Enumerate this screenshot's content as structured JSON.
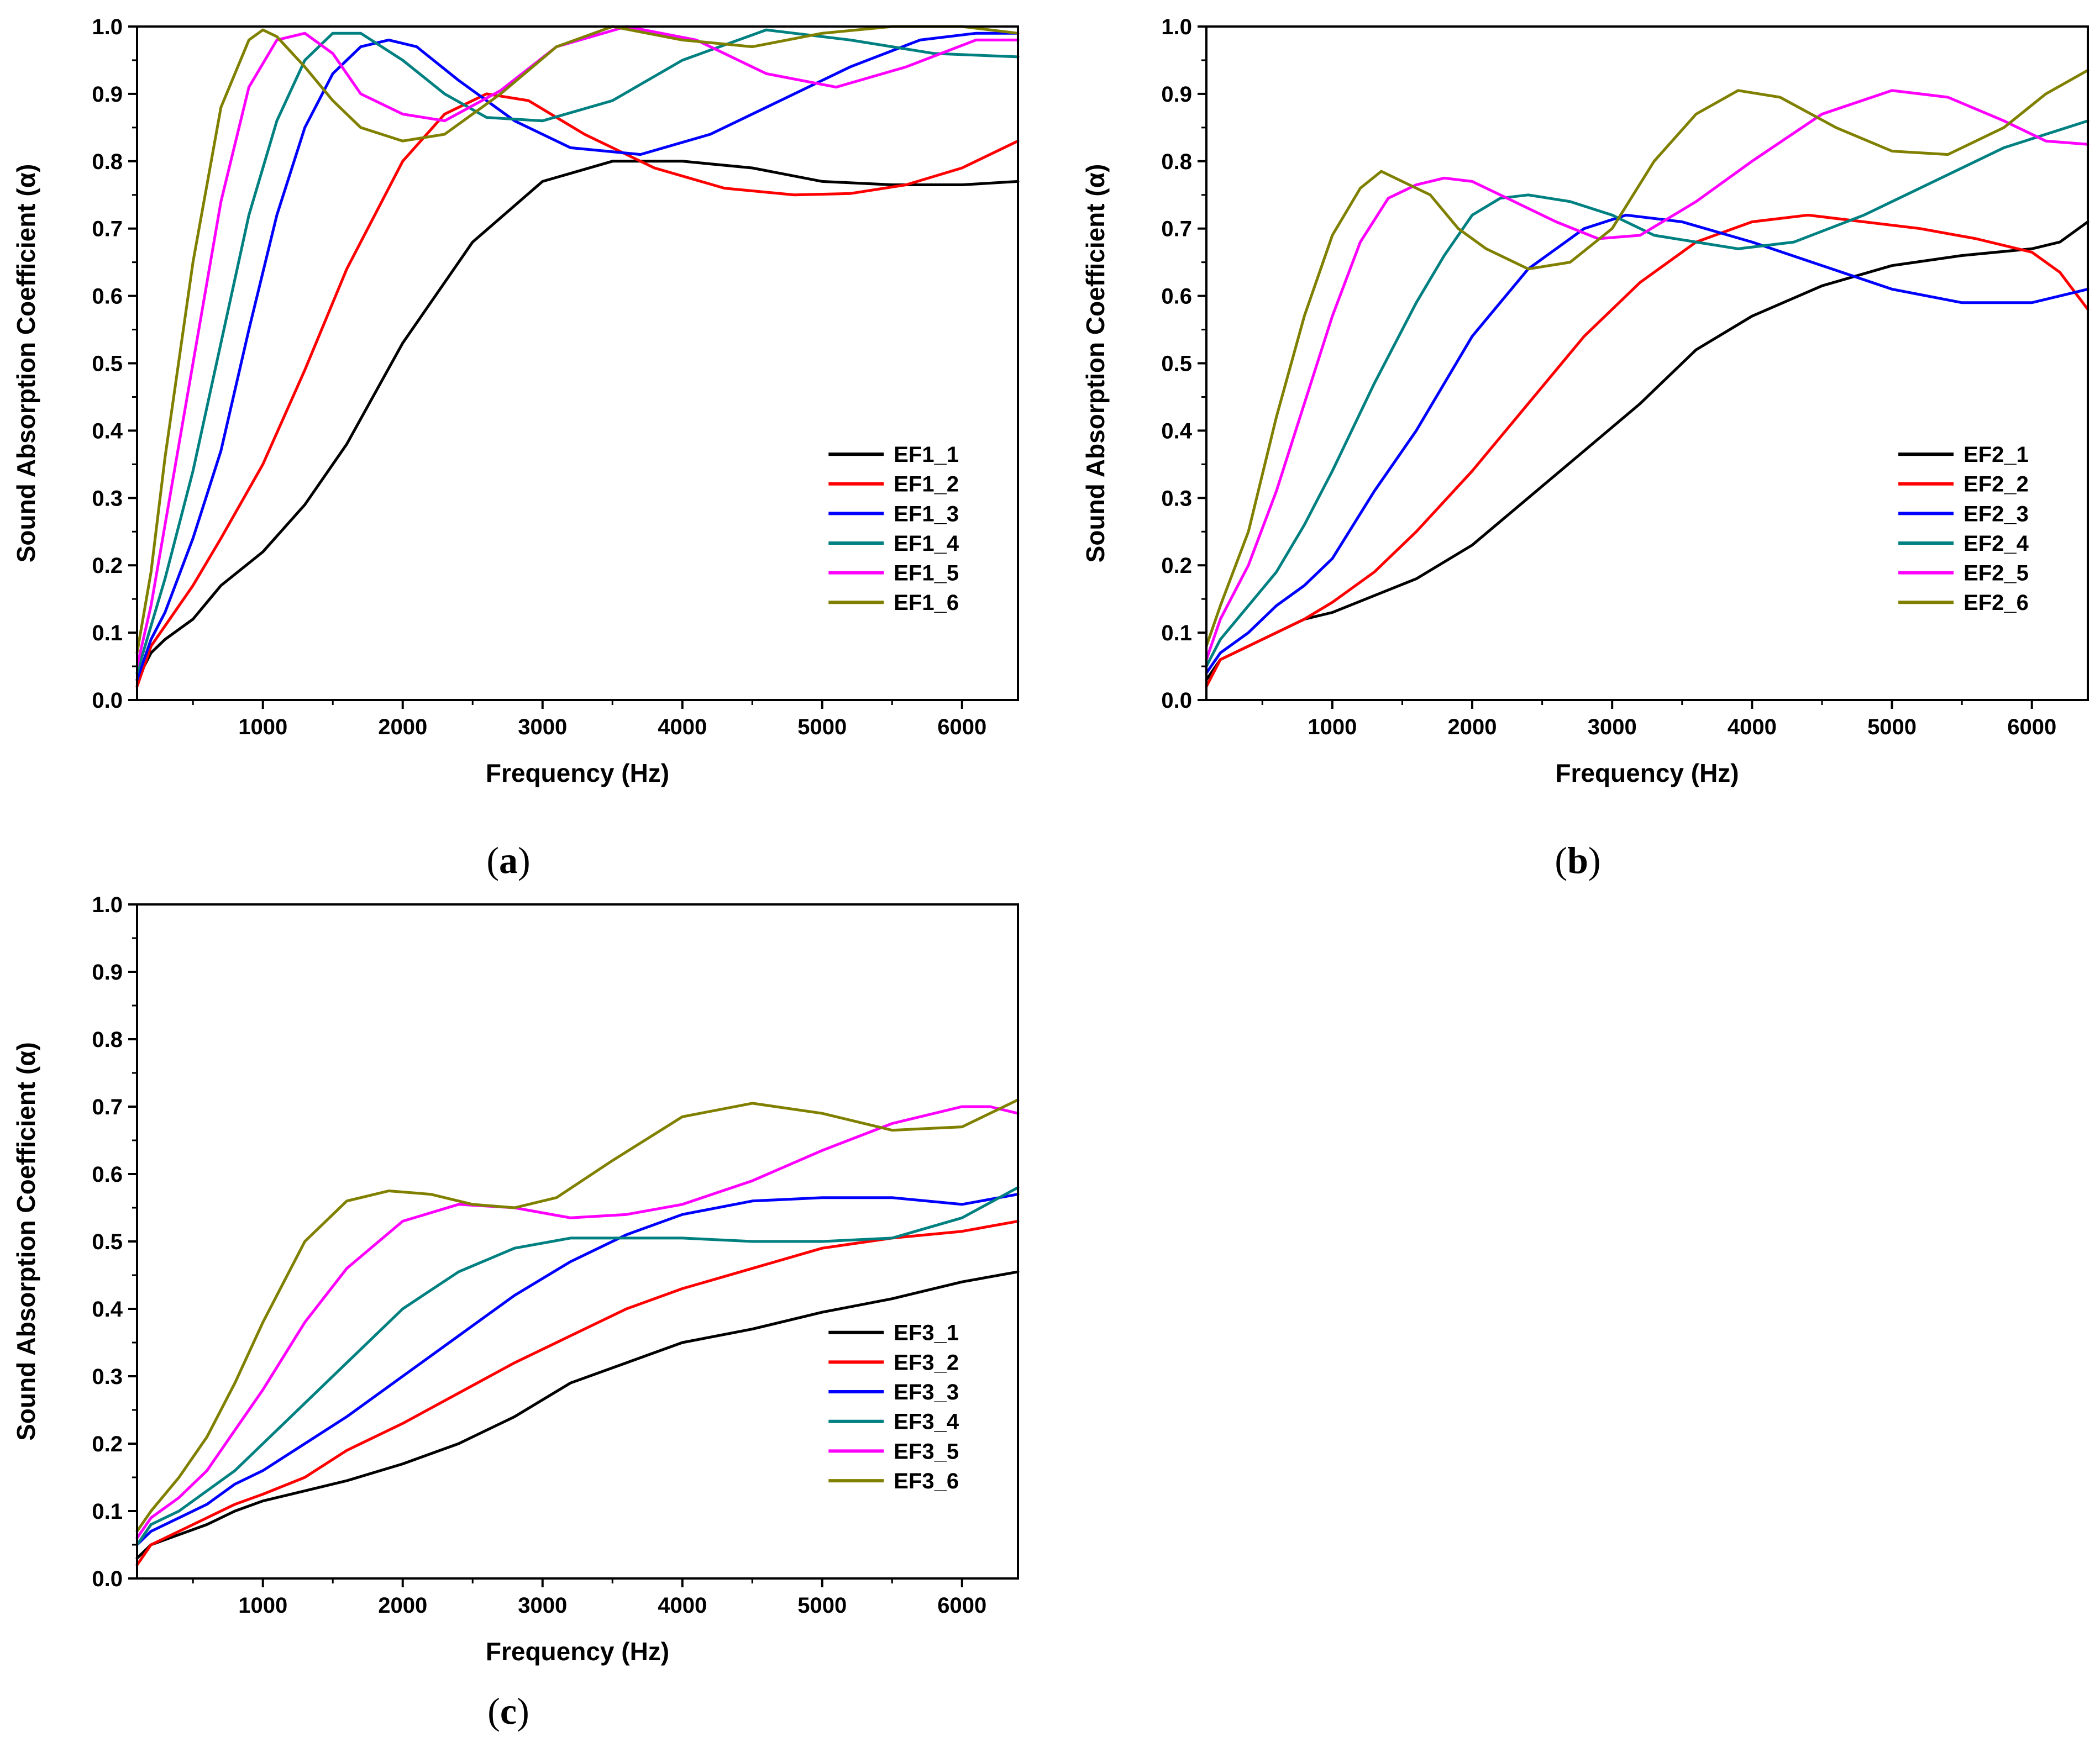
{
  "colors": [
    "#000000",
    "#ff0000",
    "#0000ff",
    "#008080",
    "#ff00ff",
    "#808000"
  ],
  "chart_data": [
    {
      "type": "line",
      "panel": "a",
      "xlabel": "Frequency (Hz)",
      "ylabel": "Sound Absorption Coefficient (α)",
      "xlim": [
        100,
        6400
      ],
      "ylim": [
        0.0,
        1.0
      ],
      "xticks": [
        1000,
        2000,
        3000,
        4000,
        5000,
        6000
      ],
      "yticks": [
        "0.0",
        "0.1",
        "0.2",
        "0.3",
        "0.4",
        "0.5",
        "0.6",
        "0.7",
        "0.8",
        "0.9",
        "1.0"
      ],
      "legend": "center-right",
      "grid": false,
      "series": [
        {
          "name": "EF1_1",
          "x": [
            100,
            200,
            300,
            500,
            700,
            1000,
            1300,
            1600,
            2000,
            2500,
            3000,
            3500,
            4000,
            4500,
            5000,
            5500,
            6000,
            6400
          ],
          "y": [
            0.03,
            0.07,
            0.09,
            0.12,
            0.17,
            0.22,
            0.29,
            0.38,
            0.53,
            0.68,
            0.77,
            0.8,
            0.8,
            0.79,
            0.77,
            0.765,
            0.765,
            0.77
          ]
        },
        {
          "name": "EF1_2",
          "x": [
            100,
            200,
            300,
            500,
            700,
            1000,
            1300,
            1600,
            2000,
            2300,
            2600,
            2900,
            3300,
            3800,
            4300,
            4800,
            5200,
            5600,
            6000,
            6400
          ],
          "y": [
            0.02,
            0.08,
            0.11,
            0.17,
            0.24,
            0.35,
            0.49,
            0.64,
            0.8,
            0.87,
            0.9,
            0.89,
            0.84,
            0.79,
            0.76,
            0.75,
            0.752,
            0.765,
            0.79,
            0.83
          ]
        },
        {
          "name": "EF1_3",
          "x": [
            100,
            200,
            300,
            500,
            700,
            900,
            1100,
            1300,
            1500,
            1700,
            1900,
            2100,
            2400,
            2800,
            3200,
            3700,
            4200,
            4700,
            5200,
            5700,
            6100,
            6400
          ],
          "y": [
            0.03,
            0.09,
            0.13,
            0.24,
            0.37,
            0.55,
            0.72,
            0.85,
            0.93,
            0.97,
            0.98,
            0.97,
            0.92,
            0.86,
            0.82,
            0.81,
            0.84,
            0.89,
            0.94,
            0.98,
            0.99,
            0.99
          ]
        },
        {
          "name": "EF1_4",
          "x": [
            100,
            200,
            300,
            500,
            700,
            900,
            1100,
            1300,
            1500,
            1700,
            2000,
            2300,
            2600,
            3000,
            3500,
            4000,
            4600,
            5200,
            5800,
            6400
          ],
          "y": [
            0.04,
            0.11,
            0.18,
            0.34,
            0.53,
            0.72,
            0.86,
            0.95,
            0.99,
            0.99,
            0.95,
            0.9,
            0.865,
            0.86,
            0.89,
            0.95,
            0.995,
            0.98,
            0.96,
            0.955
          ]
        },
        {
          "name": "EF1_5",
          "x": [
            100,
            200,
            300,
            500,
            700,
            900,
            1100,
            1300,
            1500,
            1700,
            2000,
            2300,
            2700,
            3100,
            3600,
            4100,
            4600,
            5100,
            5600,
            6100,
            6400
          ],
          "y": [
            0.05,
            0.14,
            0.26,
            0.5,
            0.74,
            0.91,
            0.98,
            0.99,
            0.96,
            0.9,
            0.87,
            0.86,
            0.905,
            0.97,
            1.0,
            0.98,
            0.93,
            0.91,
            0.94,
            0.98,
            0.98
          ]
        },
        {
          "name": "EF1_6",
          "x": [
            100,
            200,
            300,
            500,
            700,
            900,
            1000,
            1100,
            1300,
            1500,
            1700,
            2000,
            2300,
            2700,
            3100,
            3500,
            4000,
            4500,
            5000,
            5500,
            6000,
            6400
          ],
          "y": [
            0.07,
            0.19,
            0.36,
            0.65,
            0.88,
            0.98,
            0.995,
            0.985,
            0.94,
            0.89,
            0.85,
            0.83,
            0.84,
            0.9,
            0.97,
            1.0,
            0.98,
            0.97,
            0.99,
            1.0,
            1.0,
            0.99
          ]
        }
      ]
    },
    {
      "type": "line",
      "panel": "b",
      "xlabel": "Frequency (Hz)",
      "ylabel": "Sound Absorption Coefficient (α)",
      "xlim": [
        100,
        6400
      ],
      "ylim": [
        0.0,
        1.0
      ],
      "xticks": [
        1000,
        2000,
        3000,
        4000,
        5000,
        6000
      ],
      "yticks": [
        "0.0",
        "0.1",
        "0.2",
        "0.3",
        "0.4",
        "0.5",
        "0.6",
        "0.7",
        "0.8",
        "0.9",
        "1.0"
      ],
      "legend": "center-right",
      "grid": false,
      "series": [
        {
          "name": "EF2_1",
          "x": [
            100,
            200,
            400,
            600,
            800,
            1000,
            1300,
            1600,
            2000,
            2400,
            2800,
            3200,
            3600,
            4000,
            4500,
            5000,
            5500,
            6000,
            6200,
            6400
          ],
          "y": [
            0.03,
            0.06,
            0.08,
            0.1,
            0.12,
            0.13,
            0.155,
            0.18,
            0.23,
            0.3,
            0.37,
            0.44,
            0.52,
            0.57,
            0.615,
            0.645,
            0.66,
            0.67,
            0.68,
            0.71
          ]
        },
        {
          "name": "EF2_2",
          "x": [
            100,
            200,
            400,
            600,
            800,
            1000,
            1300,
            1600,
            2000,
            2400,
            2800,
            3200,
            3600,
            4000,
            4400,
            4800,
            5200,
            5600,
            6000,
            6200,
            6400
          ],
          "y": [
            0.02,
            0.06,
            0.08,
            0.1,
            0.12,
            0.145,
            0.19,
            0.25,
            0.34,
            0.44,
            0.54,
            0.62,
            0.68,
            0.71,
            0.72,
            0.71,
            0.7,
            0.685,
            0.665,
            0.635,
            0.58
          ]
        },
        {
          "name": "EF2_3",
          "x": [
            100,
            200,
            400,
            600,
            800,
            1000,
            1300,
            1600,
            2000,
            2400,
            2800,
            3100,
            3500,
            4000,
            4500,
            5000,
            5500,
            6000,
            6400
          ],
          "y": [
            0.04,
            0.07,
            0.1,
            0.14,
            0.17,
            0.21,
            0.31,
            0.4,
            0.54,
            0.64,
            0.7,
            0.72,
            0.71,
            0.68,
            0.645,
            0.61,
            0.59,
            0.59,
            0.61
          ]
        },
        {
          "name": "EF2_4",
          "x": [
            100,
            200,
            400,
            600,
            800,
            1000,
            1300,
            1600,
            1800,
            2000,
            2200,
            2400,
            2700,
            3000,
            3300,
            3600,
            3900,
            4300,
            4800,
            5300,
            5800,
            6400
          ],
          "y": [
            0.05,
            0.09,
            0.14,
            0.19,
            0.26,
            0.34,
            0.47,
            0.59,
            0.66,
            0.72,
            0.745,
            0.75,
            0.74,
            0.72,
            0.69,
            0.68,
            0.67,
            0.68,
            0.72,
            0.77,
            0.82,
            0.86
          ]
        },
        {
          "name": "EF2_5",
          "x": [
            100,
            200,
            400,
            600,
            800,
            1000,
            1200,
            1400,
            1600,
            1800,
            2000,
            2300,
            2600,
            2900,
            3200,
            3600,
            4000,
            4500,
            5000,
            5400,
            5800,
            6100,
            6400
          ],
          "y": [
            0.06,
            0.12,
            0.2,
            0.31,
            0.44,
            0.57,
            0.68,
            0.745,
            0.765,
            0.775,
            0.77,
            0.74,
            0.71,
            0.685,
            0.69,
            0.74,
            0.8,
            0.87,
            0.905,
            0.895,
            0.86,
            0.83,
            0.825
          ]
        },
        {
          "name": "EF2_6",
          "x": [
            100,
            200,
            400,
            600,
            800,
            1000,
            1200,
            1350,
            1500,
            1700,
            1900,
            2100,
            2400,
            2700,
            3000,
            3300,
            3600,
            3900,
            4200,
            4600,
            5000,
            5400,
            5800,
            6100,
            6400
          ],
          "y": [
            0.08,
            0.14,
            0.25,
            0.42,
            0.57,
            0.69,
            0.76,
            0.785,
            0.77,
            0.75,
            0.7,
            0.67,
            0.64,
            0.65,
            0.7,
            0.8,
            0.87,
            0.905,
            0.895,
            0.85,
            0.815,
            0.81,
            0.85,
            0.9,
            0.935
          ]
        }
      ]
    },
    {
      "type": "line",
      "panel": "c",
      "xlabel": "Frequency (Hz)",
      "ylabel": "Sound Absorption Coefficient (α)",
      "xlim": [
        100,
        6400
      ],
      "ylim": [
        0.0,
        1.0
      ],
      "xticks": [
        1000,
        2000,
        3000,
        4000,
        5000,
        6000
      ],
      "yticks": [
        "0.0",
        "0.1",
        "0.2",
        "0.3",
        "0.4",
        "0.5",
        "0.6",
        "0.7",
        "0.8",
        "0.9",
        "1.0"
      ],
      "legend": "center-right",
      "grid": false,
      "series": [
        {
          "name": "EF3_1",
          "x": [
            100,
            200,
            400,
            600,
            800,
            1000,
            1300,
            1600,
            2000,
            2400,
            2800,
            3200,
            3600,
            4000,
            4500,
            5000,
            5500,
            6000,
            6400
          ],
          "y": [
            0.03,
            0.05,
            0.065,
            0.08,
            0.1,
            0.115,
            0.13,
            0.145,
            0.17,
            0.2,
            0.24,
            0.29,
            0.32,
            0.35,
            0.37,
            0.395,
            0.415,
            0.44,
            0.455
          ]
        },
        {
          "name": "EF3_2",
          "x": [
            100,
            200,
            400,
            600,
            800,
            1000,
            1300,
            1600,
            2000,
            2400,
            2800,
            3200,
            3600,
            4000,
            4500,
            5000,
            5500,
            6000,
            6400
          ],
          "y": [
            0.02,
            0.05,
            0.07,
            0.09,
            0.11,
            0.125,
            0.15,
            0.19,
            0.23,
            0.275,
            0.32,
            0.36,
            0.4,
            0.43,
            0.46,
            0.49,
            0.505,
            0.515,
            0.53
          ]
        },
        {
          "name": "EF3_3",
          "x": [
            100,
            200,
            400,
            600,
            800,
            1000,
            1300,
            1600,
            2000,
            2400,
            2800,
            3200,
            3600,
            4000,
            4500,
            5000,
            5500,
            6000,
            6400
          ],
          "y": [
            0.05,
            0.07,
            0.09,
            0.11,
            0.14,
            0.16,
            0.2,
            0.24,
            0.3,
            0.36,
            0.42,
            0.47,
            0.51,
            0.54,
            0.56,
            0.565,
            0.565,
            0.555,
            0.57
          ]
        },
        {
          "name": "EF3_4",
          "x": [
            100,
            200,
            400,
            600,
            800,
            1000,
            1300,
            1600,
            2000,
            2400,
            2800,
            3200,
            3600,
            4000,
            4500,
            5000,
            5500,
            6000,
            6400
          ],
          "y": [
            0.05,
            0.08,
            0.1,
            0.13,
            0.16,
            0.2,
            0.26,
            0.32,
            0.4,
            0.455,
            0.49,
            0.505,
            0.505,
            0.505,
            0.5,
            0.5,
            0.505,
            0.535,
            0.58
          ]
        },
        {
          "name": "EF3_5",
          "x": [
            100,
            200,
            400,
            600,
            800,
            1000,
            1300,
            1600,
            2000,
            2400,
            2800,
            3200,
            3600,
            4000,
            4500,
            5000,
            5500,
            6000,
            6200,
            6400
          ],
          "y": [
            0.06,
            0.09,
            0.12,
            0.16,
            0.22,
            0.28,
            0.38,
            0.46,
            0.53,
            0.555,
            0.55,
            0.535,
            0.54,
            0.555,
            0.59,
            0.635,
            0.675,
            0.7,
            0.7,
            0.69
          ]
        },
        {
          "name": "EF3_6",
          "x": [
            100,
            200,
            400,
            600,
            800,
            1000,
            1300,
            1600,
            1900,
            2200,
            2500,
            2800,
            3100,
            3500,
            4000,
            4500,
            5000,
            5500,
            6000,
            6400
          ],
          "y": [
            0.07,
            0.1,
            0.15,
            0.21,
            0.29,
            0.38,
            0.5,
            0.56,
            0.575,
            0.57,
            0.555,
            0.55,
            0.565,
            0.62,
            0.685,
            0.705,
            0.69,
            0.665,
            0.67,
            0.71
          ]
        }
      ]
    }
  ],
  "panel_labels": [
    {
      "open": "(",
      "letter": "a",
      "close": ")"
    },
    {
      "open": "(",
      "letter": "b",
      "close": ")"
    },
    {
      "open": "(",
      "letter": "c",
      "close": ")"
    }
  ]
}
